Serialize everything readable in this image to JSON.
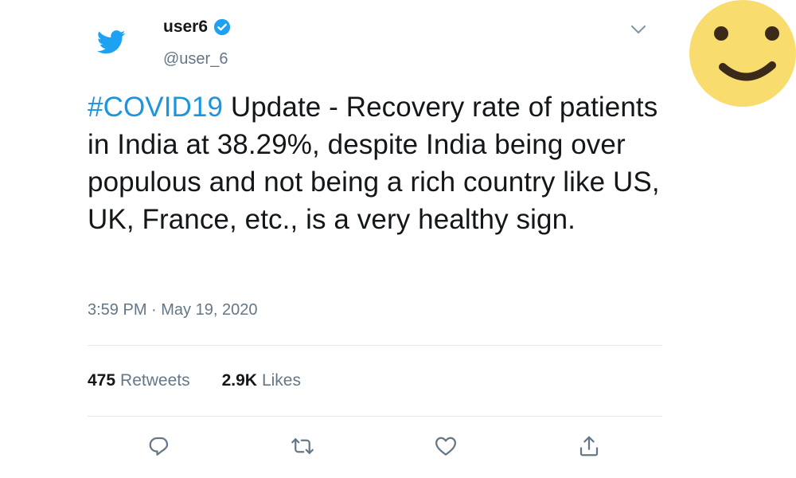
{
  "tweet": {
    "user_name": "user6",
    "handle": "@user_6",
    "verified": true,
    "hashtag": "#COVID19",
    "text": " Update - Recovery rate of patients in India at 38.29%, despite India being over populous and not being a rich country like US, UK, France, etc., is a very healthy sign.",
    "timestamp": "3:59 PM · May 19, 2020",
    "retweets_count": "475",
    "retweets_label": "Retweets",
    "likes_count": "2.9K",
    "likes_label": "Likes"
  },
  "icons": {
    "logo": "twitter-bird-icon",
    "verified": "verified-badge-icon",
    "menu": "chevron-down-icon",
    "actions": [
      "reply-icon",
      "retweet-icon",
      "like-icon",
      "share-icon"
    ],
    "sticker": "smiley-face-icon"
  },
  "colors": {
    "brand_blue": "#1da1f2",
    "hashtag_blue": "#1b95e0",
    "secondary_text": "#657786",
    "primary_text": "#14171a",
    "divider": "#e1e8ed",
    "smiley_yellow": "#f8dc6e",
    "smiley_features": "#3b2a1a"
  }
}
